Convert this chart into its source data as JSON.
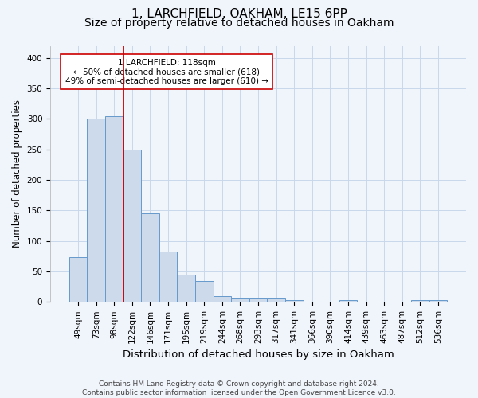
{
  "title1": "1, LARCHFIELD, OAKHAM, LE15 6PP",
  "title2": "Size of property relative to detached houses in Oakham",
  "xlabel": "Distribution of detached houses by size in Oakham",
  "ylabel": "Number of detached properties",
  "categories": [
    "49sqm",
    "73sqm",
    "98sqm",
    "122sqm",
    "146sqm",
    "171sqm",
    "195sqm",
    "219sqm",
    "244sqm",
    "268sqm",
    "293sqm",
    "317sqm",
    "341sqm",
    "366sqm",
    "390sqm",
    "414sqm",
    "439sqm",
    "463sqm",
    "487sqm",
    "512sqm",
    "536sqm"
  ],
  "values": [
    73,
    300,
    305,
    250,
    145,
    83,
    45,
    34,
    10,
    6,
    6,
    6,
    3,
    0,
    0,
    3,
    0,
    0,
    0,
    3,
    3
  ],
  "bar_color": "#ccdaeb",
  "bar_edge_color": "#6699cc",
  "vline_color": "#cc0000",
  "vline_pos": 2.5,
  "annotation_text": "1 LARCHFIELD: 118sqm\n← 50% of detached houses are smaller (618)\n49% of semi-detached houses are larger (610) →",
  "annotation_box_color": "white",
  "annotation_box_edge": "#cc0000",
  "ylim": [
    0,
    420
  ],
  "yticks": [
    0,
    50,
    100,
    150,
    200,
    250,
    300,
    350,
    400
  ],
  "footer": "Contains HM Land Registry data © Crown copyright and database right 2024.\nContains public sector information licensed under the Open Government Licence v3.0.",
  "bg_color": "#f0f4fb",
  "grid_color": "#c8d8ea",
  "title1_fontsize": 11,
  "title2_fontsize": 10,
  "xlabel_fontsize": 9.5,
  "ylabel_fontsize": 8.5,
  "tick_fontsize": 7.5,
  "annot_fontsize": 7.5,
  "footer_fontsize": 6.5
}
